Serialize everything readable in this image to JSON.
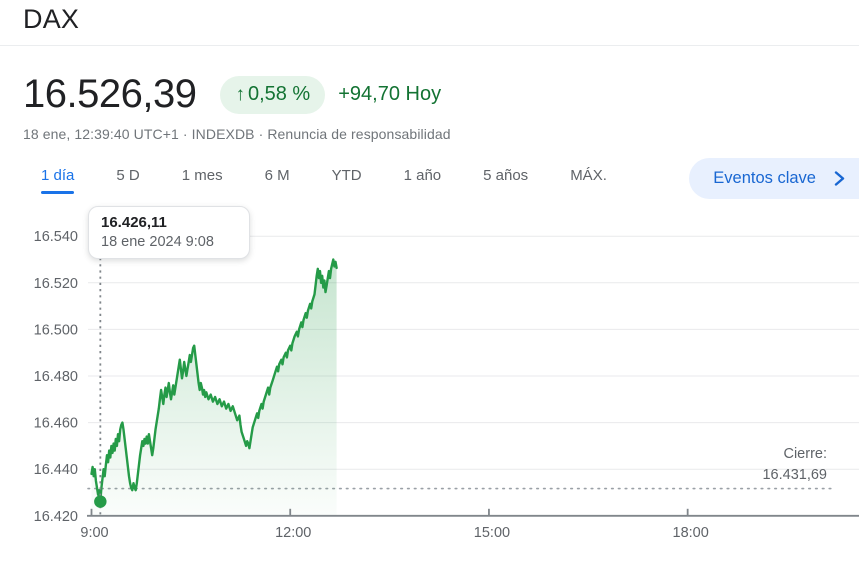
{
  "header": {
    "title": "DAX",
    "price": "16.526,39",
    "change_arrow": "↑",
    "change_percent": "0,58 %",
    "change_amount": "+94,70 Hoy",
    "subtitle": "18 ene, 12:39:40 UTC+1 · INDEXDB · Renuncia de responsabilidad"
  },
  "tabs": {
    "items": [
      {
        "label": "1 día",
        "active": true
      },
      {
        "label": "5 D",
        "active": false
      },
      {
        "label": "1 mes",
        "active": false
      },
      {
        "label": "6 M",
        "active": false
      },
      {
        "label": "YTD",
        "active": false
      },
      {
        "label": "1 año",
        "active": false
      },
      {
        "label": "5 años",
        "active": false
      },
      {
        "label": "MÁX.",
        "active": false
      }
    ]
  },
  "events_button": {
    "label": "Eventos clave",
    "icon": "chevron-right"
  },
  "tooltip": {
    "value": "16.426,11",
    "date": "18 ene 2024 9:08"
  },
  "close_label": {
    "title": "Cierre:",
    "value": "16.431,69"
  },
  "colors": {
    "accent_blue": "#1a73e8",
    "pill_text_blue": "#1967d2",
    "pill_bg": "#e8f0fe",
    "green_text": "#137333",
    "badge_bg": "#e6f4ea",
    "chart_line_green": "#259b48",
    "gray_text": "#5f6368",
    "dark_text": "#202124",
    "gridline": "#e9eaec",
    "axis_line": "#80868b"
  },
  "chart_data": {
    "type": "line",
    "title": "DAX 1 día",
    "x_unit": "minutes since 9:00",
    "x_ticks": [
      {
        "min": 0,
        "label": "9:00"
      },
      {
        "min": 180,
        "label": "12:00"
      },
      {
        "min": 360,
        "label": "15:00"
      },
      {
        "min": 540,
        "label": "18:00"
      }
    ],
    "y_ticks": [
      {
        "value": 16540,
        "label": "16.540"
      },
      {
        "value": 16520,
        "label": "16.520"
      },
      {
        "value": 16500,
        "label": "16.500"
      },
      {
        "value": 16480,
        "label": "16.480"
      },
      {
        "value": 16460,
        "label": "16.460"
      },
      {
        "value": 16440,
        "label": "16.440"
      },
      {
        "value": 16420,
        "label": "16.420"
      }
    ],
    "y_range": [
      16420,
      16540
    ],
    "previous_close": 16431.69,
    "marker": {
      "min": 8,
      "value": 16426.11,
      "label_value": "16.426,11",
      "label_date": "18 ene 2024 9:08"
    },
    "series": [
      {
        "name": "DAX",
        "points": [
          [
            0,
            16438
          ],
          [
            1,
            16441
          ],
          [
            2,
            16437
          ],
          [
            3,
            16440
          ],
          [
            4,
            16435
          ],
          [
            5,
            16432
          ],
          [
            6,
            16429
          ],
          [
            7,
            16431
          ],
          [
            8,
            16426.1
          ],
          [
            9,
            16432
          ],
          [
            10,
            16436
          ],
          [
            11,
            16440
          ],
          [
            12,
            16437
          ],
          [
            13,
            16442
          ],
          [
            14,
            16446
          ],
          [
            15,
            16443
          ],
          [
            16,
            16448
          ],
          [
            17,
            16445
          ],
          [
            18,
            16450
          ],
          [
            19,
            16447
          ],
          [
            20,
            16451
          ],
          [
            21,
            16448
          ],
          [
            22,
            16453
          ],
          [
            23,
            16450
          ],
          [
            24,
            16455
          ],
          [
            25,
            16452
          ],
          [
            26,
            16457
          ],
          [
            27,
            16459
          ],
          [
            28,
            16460
          ],
          [
            29,
            16457
          ],
          [
            30,
            16453
          ],
          [
            31,
            16449
          ],
          [
            32,
            16445
          ],
          [
            33,
            16441
          ],
          [
            34,
            16437
          ],
          [
            35,
            16434
          ],
          [
            36,
            16432
          ],
          [
            37,
            16431
          ],
          [
            38,
            16434
          ],
          [
            39,
            16432
          ],
          [
            40,
            16431
          ],
          [
            41,
            16434
          ],
          [
            42,
            16438
          ],
          [
            43,
            16442
          ],
          [
            44,
            16446
          ],
          [
            45,
            16449
          ],
          [
            46,
            16452
          ],
          [
            47,
            16450
          ],
          [
            48,
            16453
          ],
          [
            49,
            16451
          ],
          [
            50,
            16454
          ],
          [
            51,
            16451
          ],
          [
            52,
            16455
          ],
          [
            53,
            16452
          ],
          [
            54,
            16449
          ],
          [
            55,
            16446
          ],
          [
            56,
            16449
          ],
          [
            57,
            16453
          ],
          [
            58,
            16457
          ],
          [
            59,
            16460
          ],
          [
            60,
            16463
          ],
          [
            61,
            16466
          ],
          [
            62,
            16470
          ],
          [
            63,
            16474
          ],
          [
            64,
            16471
          ],
          [
            65,
            16468
          ],
          [
            66,
            16472
          ],
          [
            67,
            16475
          ],
          [
            68,
            16471
          ],
          [
            69,
            16474
          ],
          [
            70,
            16477
          ],
          [
            71,
            16473
          ],
          [
            72,
            16470
          ],
          [
            73,
            16473
          ],
          [
            74,
            16476
          ],
          [
            75,
            16472
          ],
          [
            76,
            16475
          ],
          [
            77,
            16478
          ],
          [
            78,
            16481
          ],
          [
            79,
            16484
          ],
          [
            80,
            16487
          ],
          [
            81,
            16483
          ],
          [
            82,
            16479
          ],
          [
            83,
            16482
          ],
          [
            84,
            16486
          ],
          [
            85,
            16483
          ],
          [
            86,
            16480
          ],
          [
            87,
            16483
          ],
          [
            88,
            16486
          ],
          [
            89,
            16489
          ],
          [
            90,
            16486
          ],
          [
            91,
            16489
          ],
          [
            92,
            16492
          ],
          [
            93,
            16493
          ],
          [
            94,
            16489
          ],
          [
            95,
            16485
          ],
          [
            96,
            16481
          ],
          [
            97,
            16477
          ],
          [
            98,
            16474
          ],
          [
            99,
            16477
          ],
          [
            100,
            16475
          ],
          [
            101,
            16472
          ],
          [
            102,
            16474
          ],
          [
            103,
            16471
          ],
          [
            104,
            16473
          ],
          [
            106,
            16470
          ],
          [
            108,
            16472
          ],
          [
            110,
            16469
          ],
          [
            112,
            16471
          ],
          [
            114,
            16468
          ],
          [
            116,
            16470
          ],
          [
            118,
            16467
          ],
          [
            120,
            16469
          ],
          [
            122,
            16466
          ],
          [
            124,
            16468
          ],
          [
            126,
            16465
          ],
          [
            128,
            16467
          ],
          [
            130,
            16464
          ],
          [
            132,
            16461
          ],
          [
            134,
            16463
          ],
          [
            135,
            16459
          ],
          [
            136,
            16456
          ],
          [
            138,
            16453
          ],
          [
            140,
            16450
          ],
          [
            141,
            16452
          ],
          [
            142,
            16451
          ],
          [
            143,
            16449
          ],
          [
            144,
            16452
          ],
          [
            145,
            16455
          ],
          [
            146,
            16458
          ],
          [
            148,
            16461
          ],
          [
            150,
            16464
          ],
          [
            151,
            16462
          ],
          [
            152,
            16465
          ],
          [
            154,
            16468
          ],
          [
            155,
            16466
          ],
          [
            156,
            16469
          ],
          [
            158,
            16472
          ],
          [
            160,
            16475
          ],
          [
            161,
            16472
          ],
          [
            162,
            16475
          ],
          [
            164,
            16478
          ],
          [
            166,
            16481
          ],
          [
            168,
            16484
          ],
          [
            169,
            16482
          ],
          [
            170,
            16485
          ],
          [
            172,
            16487
          ],
          [
            173,
            16485
          ],
          [
            174,
            16488
          ],
          [
            176,
            16490
          ],
          [
            177,
            16488
          ],
          [
            178,
            16491
          ],
          [
            180,
            16493
          ],
          [
            181,
            16491
          ],
          [
            182,
            16494
          ],
          [
            184,
            16497
          ],
          [
            186,
            16499
          ],
          [
            187,
            16497
          ],
          [
            188,
            16500
          ],
          [
            190,
            16503
          ],
          [
            191,
            16501
          ],
          [
            192,
            16504
          ],
          [
            194,
            16507
          ],
          [
            195,
            16505
          ],
          [
            196,
            16508
          ],
          [
            198,
            16511
          ],
          [
            199,
            16509
          ],
          [
            200,
            16512
          ],
          [
            202,
            16515
          ],
          [
            203,
            16519
          ],
          [
            204,
            16523
          ],
          [
            205,
            16526
          ],
          [
            206,
            16522
          ],
          [
            207,
            16525
          ],
          [
            208,
            16520
          ],
          [
            209,
            16523
          ],
          [
            210,
            16518
          ],
          [
            211,
            16521
          ],
          [
            212,
            16516
          ],
          [
            213,
            16519
          ],
          [
            214,
            16522
          ],
          [
            215,
            16525
          ],
          [
            216,
            16522
          ],
          [
            217,
            16526
          ],
          [
            218,
            16528
          ],
          [
            219,
            16530
          ],
          [
            220,
            16527
          ],
          [
            221,
            16529
          ],
          [
            222,
            16526.4
          ]
        ]
      }
    ]
  }
}
